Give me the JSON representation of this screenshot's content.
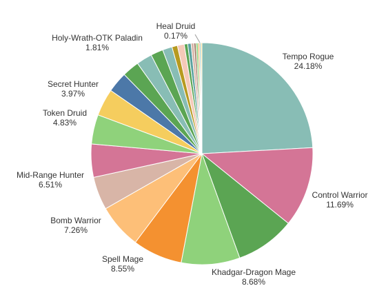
{
  "chart_data": {
    "type": "pie",
    "start_angle_deg": 0,
    "direction": "clockwise",
    "slices": [
      {
        "label": "Tempo Rogue",
        "value": 24.18,
        "value_label": "24.18%",
        "color": "#88bdb5"
      },
      {
        "label": "Control Warrior",
        "value": 11.69,
        "value_label": "11.69%",
        "color": "#d47596"
      },
      {
        "label": "Khadgar-Dragon Mage",
        "value": 8.68,
        "value_label": "8.68%",
        "color": "#5ba553"
      },
      {
        "label": "Spell Mage",
        "value": 8.55,
        "value_label": "8.55%",
        "color": "#8fd27b"
      },
      {
        "label": "Bomb Warrior",
        "value": 7.26,
        "value_label": "7.26%",
        "color": "#f49130"
      },
      {
        "label": "Mid-Range Hunter",
        "value": 6.51,
        "value_label": "6.51%",
        "color": "#fdbf78"
      },
      {
        "label": "Token Druid",
        "value": 4.83,
        "value_label": "4.83%",
        "color": "#d8b5a7"
      },
      {
        "label": "",
        "value": 4.83,
        "value_label": "",
        "color": "#d47596"
      },
      {
        "label": "",
        "value": 4.3,
        "value_label": "",
        "color": "#8fd27b"
      },
      {
        "label": "Secret Hunter",
        "value": 3.97,
        "value_label": "3.97%",
        "color": "#f5cd5e"
      },
      {
        "label": "",
        "value": 3.0,
        "value_label": "",
        "color": "#4c78a8"
      },
      {
        "label": "",
        "value": 2.5,
        "value_label": "",
        "color": "#5ba553"
      },
      {
        "label": "",
        "value": 2.3,
        "value_label": "",
        "color": "#88bdb5"
      },
      {
        "label": "Holy-Wrath-OTK Paladin",
        "value": 1.81,
        "value_label": "1.81%",
        "color": "#5ba553"
      },
      {
        "label": "",
        "value": 1.4,
        "value_label": "",
        "color": "#88bdb5"
      },
      {
        "label": "",
        "value": 0.8,
        "value_label": "",
        "color": "#b79a20"
      },
      {
        "label": "",
        "value": 1.0,
        "value_label": "",
        "color": "#f5c9b8"
      },
      {
        "label": "",
        "value": 0.5,
        "value_label": "",
        "color": "#5ba553"
      },
      {
        "label": "",
        "value": 0.5,
        "value_label": "",
        "color": "#5aa2a0"
      },
      {
        "label": "",
        "value": 0.4,
        "value_label": "",
        "color": "#d8b5a7"
      },
      {
        "label": "",
        "value": 0.3,
        "value_label": "",
        "color": "#9d7660"
      },
      {
        "label": "",
        "value": 0.3,
        "value_label": "",
        "color": "#8fd27b"
      },
      {
        "label": "",
        "value": 0.2,
        "value_label": "",
        "color": "#f49130"
      },
      {
        "label": "",
        "value": 0.2,
        "value_label": "",
        "color": "#88bdb5"
      },
      {
        "label": "Heal Druid",
        "value": 0.17,
        "value_label": "0.17%",
        "color": "#f5cd5e"
      }
    ],
    "legend": "none",
    "title": ""
  }
}
